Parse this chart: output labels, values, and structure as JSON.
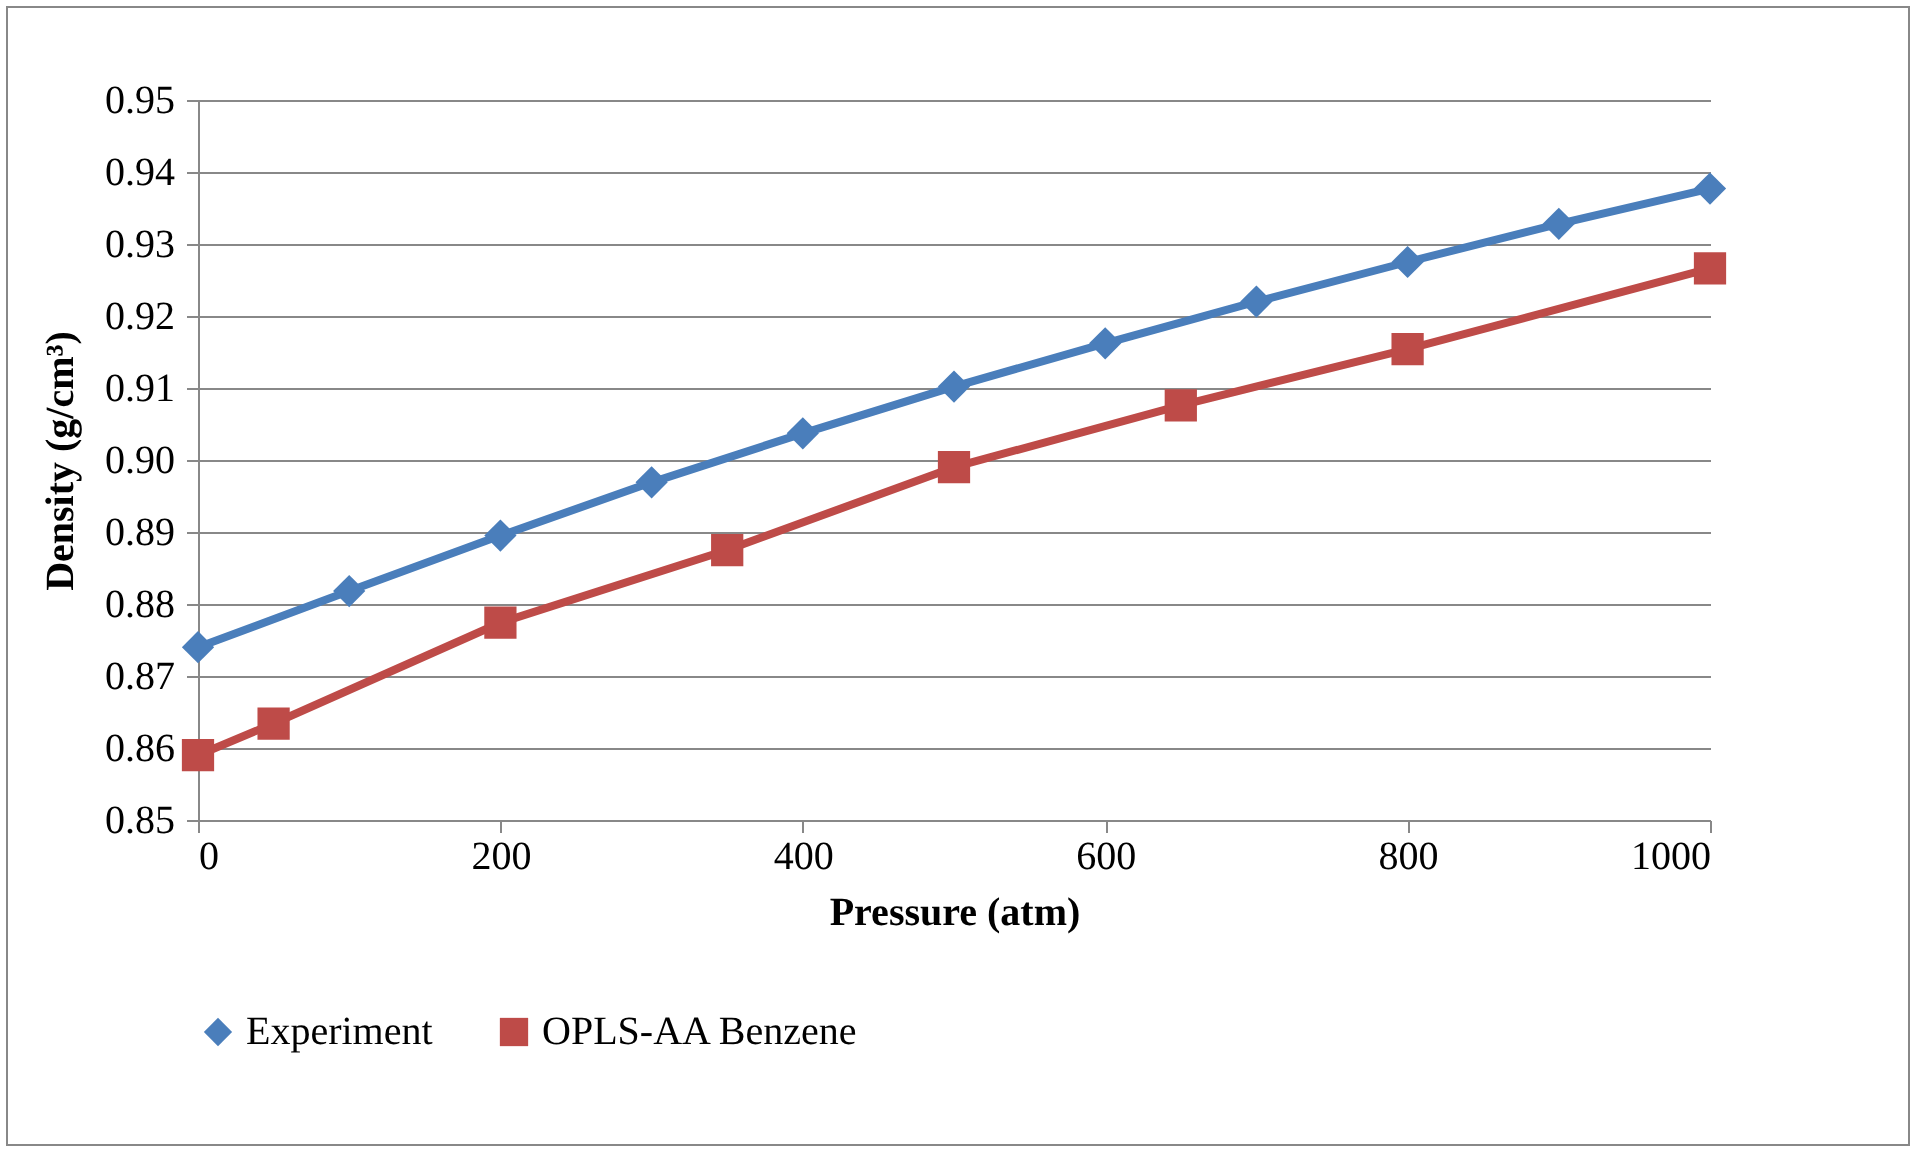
{
  "chart_data": {
    "type": "line",
    "xlabel": "Pressure (atm)",
    "ylabel": "Density (g/cm³)",
    "xlim": [
      0,
      1000
    ],
    "xticks": [
      0,
      200,
      400,
      600,
      800,
      1000
    ],
    "ylim": [
      0.85,
      0.95
    ],
    "yticks": [
      {
        "value": 0.85,
        "label": "0.85"
      },
      {
        "value": 0.86,
        "label": "0.86"
      },
      {
        "value": 0.87,
        "label": "0.87"
      },
      {
        "value": 0.88,
        "label": "0.88"
      },
      {
        "value": 0.89,
        "label": "0.89"
      },
      {
        "value": 0.9,
        "label": "0.90"
      },
      {
        "value": 0.91,
        "label": "0.91"
      },
      {
        "value": 0.92,
        "label": "0.92"
      },
      {
        "value": 0.93,
        "label": "0.93"
      },
      {
        "value": 0.94,
        "label": "0.94"
      },
      {
        "value": 0.95,
        "label": "0.95"
      }
    ],
    "grid": "y",
    "legend": "bottom",
    "series": [
      {
        "name": "Experiment",
        "color": "#4a7ebb",
        "marker": "diamond",
        "x": [
          0,
          100,
          200,
          300,
          400,
          500,
          600,
          700,
          800,
          900,
          1000
        ],
        "values": [
          0.874,
          0.8818,
          0.8895,
          0.8969,
          0.9037,
          0.9102,
          0.9162,
          0.922,
          0.9275,
          0.9328,
          0.9377
        ]
      },
      {
        "name": "OPLS-AA Benzene",
        "color": "#be4b48",
        "marker": "square",
        "x": [
          0,
          50,
          200,
          350,
          500,
          650,
          800,
          1000
        ],
        "values": [
          0.859,
          0.8634,
          0.8774,
          0.8875,
          0.899,
          0.9076,
          0.9154,
          0.9266
        ]
      }
    ]
  }
}
